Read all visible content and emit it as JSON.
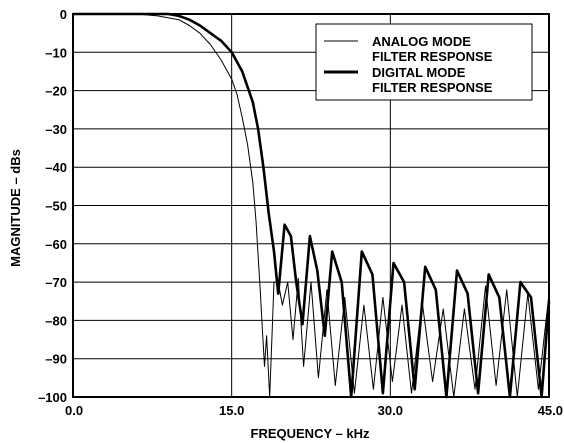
{
  "chart_data": {
    "type": "line",
    "title": "",
    "xlabel": "FREQUENCY – kHz",
    "ylabel": "MAGNITUDE – dBs",
    "xlim": [
      0,
      45
    ],
    "ylim": [
      -100,
      0
    ],
    "x_ticks": [
      0,
      15,
      30,
      45
    ],
    "x_tick_labels": [
      "0.0",
      "15.0",
      "30.0",
      "45.0"
    ],
    "y_ticks": [
      0,
      -10,
      -20,
      -30,
      -40,
      -50,
      -60,
      -70,
      -80,
      -90,
      -100
    ],
    "y_tick_labels": [
      "0",
      "–10",
      "–20",
      "–30",
      "–40",
      "–50",
      "–60",
      "–70",
      "–80",
      "–90",
      "–100"
    ],
    "grid": true,
    "legend_position": "top-right",
    "series": [
      {
        "name": "ANALOG MODE FILTER RESPONSE",
        "line": "thin",
        "x": [
          0,
          6,
          8,
          10,
          11,
          12,
          13,
          14,
          15,
          15.5,
          16,
          16.5,
          17,
          17.3,
          17.5,
          17.7,
          17.9,
          18.1,
          18.3,
          18.6,
          19.0,
          19.4,
          19.8,
          20.3,
          20.8,
          21.3,
          21.8,
          22.5,
          23.2,
          24.0,
          24.8,
          25.7,
          26.6,
          27.5,
          28.4,
          29.3,
          30.2,
          31.1,
          32.0,
          33.0,
          34.0,
          35.0,
          36.0,
          37.0,
          38.0,
          39.0,
          40.0,
          41.0,
          42.0,
          43.0,
          44.0,
          45.0
        ],
        "values": [
          0,
          0,
          -0.5,
          -1.5,
          -3,
          -5,
          -8,
          -12,
          -17,
          -21,
          -27,
          -34,
          -44,
          -54,
          -63,
          -72,
          -82,
          -92,
          -84,
          -100,
          -70,
          -70,
          -76,
          -70,
          -85,
          -69,
          -92,
          -70,
          -95,
          -72,
          -97,
          -74,
          -99,
          -76,
          -98,
          -74,
          -96,
          -76,
          -99,
          -75,
          -96,
          -77,
          -100,
          -77,
          -98,
          -71,
          -97,
          -72,
          -100,
          -73,
          -98,
          -73
        ]
      },
      {
        "name": "DIGITAL MODE FILTER RESPONSE",
        "line": "thick",
        "x": [
          0,
          9,
          10,
          11,
          12,
          13,
          14,
          15,
          16,
          17,
          17.5,
          18,
          18.5,
          19.0,
          19.4,
          20.0,
          20.6,
          21.1,
          21.7,
          22.4,
          23.1,
          23.8,
          24.5,
          25.4,
          26.3,
          27.3,
          28.3,
          29.3,
          30.3,
          31.3,
          32.3,
          33.3,
          34.3,
          35.3,
          36.3,
          37.3,
          38.3,
          39.3,
          40.3,
          41.3,
          42.3,
          43.3,
          44.3,
          45.0
        ],
        "values": [
          0,
          0,
          -0.5,
          -1.5,
          -3,
          -5,
          -7,
          -10,
          -15,
          -23,
          -30,
          -40,
          -52,
          -62,
          -73,
          -55,
          -58,
          -70,
          -81,
          -58,
          -67,
          -84,
          -62,
          -70,
          -100,
          -62,
          -68,
          -99,
          -65,
          -70,
          -98,
          -66,
          -72,
          -100,
          -67,
          -73,
          -99,
          -68,
          -74,
          -100,
          -70,
          -74,
          -100,
          -75
        ]
      }
    ]
  }
}
